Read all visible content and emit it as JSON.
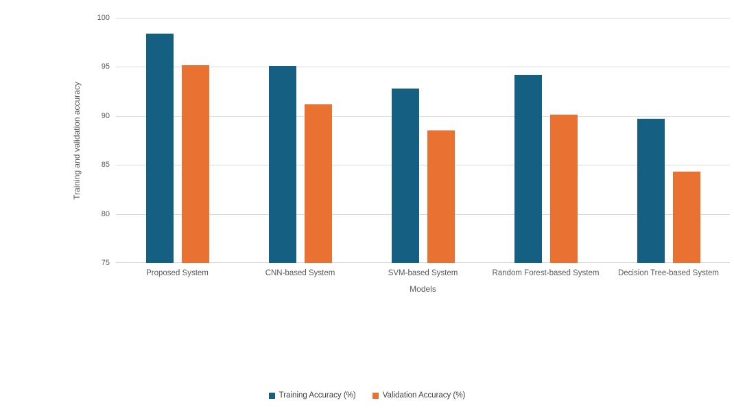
{
  "chart_data": {
    "type": "bar",
    "title": "",
    "categories": [
      "Proposed System",
      "CNN-based System",
      "SVM-based System",
      "Random Forest-based System",
      "Decision Tree-based System"
    ],
    "series": [
      {
        "name": "Training Accuracy (%)",
        "color": "#156082",
        "values": [
          98.4,
          95.1,
          92.8,
          94.2,
          89.7
        ]
      },
      {
        "name": "Validation Accuracy (%)",
        "color": "#E97132",
        "values": [
          95.2,
          91.2,
          88.5,
          90.1,
          84.3
        ]
      }
    ],
    "xlabel": "Models",
    "ylabel": "Training and validation accuracy",
    "ylim": [
      75,
      100
    ],
    "ytick_step": 5,
    "yticks": [
      75,
      80,
      85,
      90,
      95,
      100
    ],
    "grid": true,
    "legend_position": "bottom",
    "colors": {
      "grid": "#D9D9D9",
      "axis_text": "#595959",
      "legend_text": "#404040",
      "background": "#FFFFFF"
    }
  }
}
